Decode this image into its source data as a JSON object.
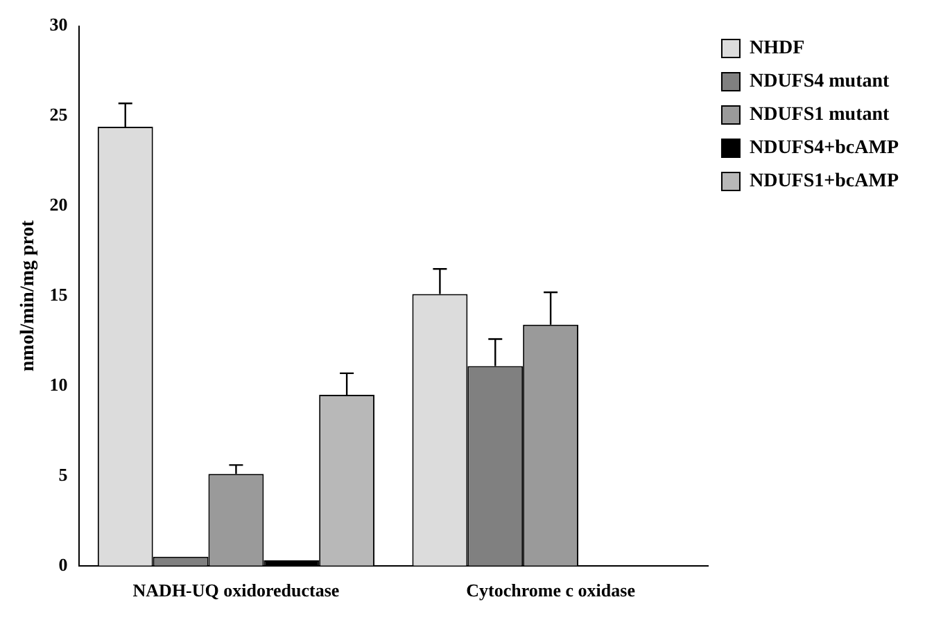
{
  "chart_data": {
    "type": "bar",
    "ylabel": "nmol/min/mg prot",
    "categories": [
      "NADH-UQ oxidoreductase",
      "Cytochrome c oxidase"
    ],
    "series": [
      {
        "name": "NHDF",
        "color": "#dcdcdc",
        "values": [
          24.4,
          15.1
        ],
        "errors": [
          [
            24.4,
            25.7
          ],
          [
            15.1,
            16.5
          ]
        ]
      },
      {
        "name": "NDUFS4 mutant",
        "color": "#808080",
        "values": [
          0.5,
          11.1
        ],
        "errors": [
          null,
          [
            11.1,
            12.6
          ]
        ]
      },
      {
        "name": "NDUFS1 mutant",
        "color": "#9a9a9a",
        "values": [
          5.1,
          13.4
        ],
        "errors": [
          [
            5.1,
            5.6
          ],
          [
            13.4,
            15.2
          ]
        ]
      },
      {
        "name": "NDUFS4+bcAMP",
        "color": "#000000",
        "values": [
          0.3,
          null
        ],
        "errors": [
          null,
          null
        ]
      },
      {
        "name": "NDUFS1+bcAMP",
        "color": "#b8b8b8",
        "values": [
          9.5,
          null
        ],
        "errors": [
          [
            9.5,
            10.7
          ],
          null
        ]
      }
    ],
    "ylim": [
      0,
      30
    ],
    "yticks": [
      0,
      5,
      10,
      15,
      20,
      25,
      30
    ],
    "grid": false,
    "legend": "top right"
  }
}
